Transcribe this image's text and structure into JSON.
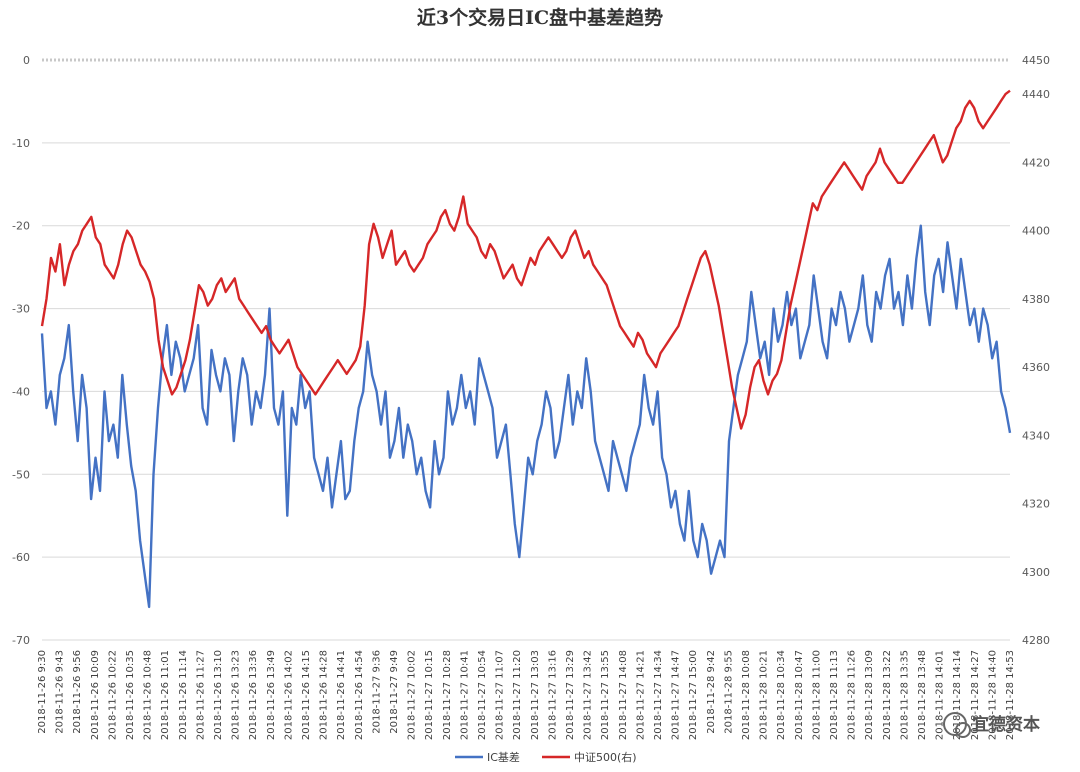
{
  "chart_data": {
    "type": "line",
    "title": "近3个交易日IC盘中基差趋势",
    "y_left": {
      "ylim": [
        -70,
        0
      ],
      "ticks": [
        0,
        -10,
        -20,
        -30,
        -40,
        -50,
        -60,
        -70
      ]
    },
    "y_right": {
      "ylim": [
        4280,
        4450
      ],
      "ticks": [
        4450,
        4440,
        4420,
        4400,
        4380,
        4360,
        4340,
        4320,
        4300,
        4280
      ]
    },
    "x_tick_labels": [
      "2018-11-26 9:30",
      "2018-11-26 9:43",
      "2018-11-26 9:56",
      "2018-11-26 10:09",
      "2018-11-26 10:22",
      "2018-11-26 10:35",
      "2018-11-26 10:48",
      "2018-11-26 11:01",
      "2018-11-26 11:14",
      "2018-11-26 11:27",
      "2018-11-26 13:10",
      "2018-11-26 13:23",
      "2018-11-26 13:36",
      "2018-11-26 13:49",
      "2018-11-26 14:02",
      "2018-11-26 14:15",
      "2018-11-26 14:28",
      "2018-11-26 14:41",
      "2018-11-26 14:54",
      "2018-11-27 9:36",
      "2018-11-27 9:49",
      "2018-11-27 10:02",
      "2018-11-27 10:15",
      "2018-11-27 10:28",
      "2018-11-27 10:41",
      "2018-11-27 10:54",
      "2018-11-27 11:07",
      "2018-11-27 11:20",
      "2018-11-27 13:03",
      "2018-11-27 13:16",
      "2018-11-27 13:29",
      "2018-11-27 13:42",
      "2018-11-27 13:55",
      "2018-11-27 14:08",
      "2018-11-27 14:21",
      "2018-11-27 14:34",
      "2018-11-27 14:47",
      "2018-11-27 15:00",
      "2018-11-28 9:42",
      "2018-11-28 9:55",
      "2018-11-28 10:08",
      "2018-11-28 10:21",
      "2018-11-28 10:34",
      "2018-11-28 10:47",
      "2018-11-28 11:00",
      "2018-11-28 11:13",
      "2018-11-28 11:26",
      "2018-11-28 13:09",
      "2018-11-28 13:22",
      "2018-11-28 13:35",
      "2018-11-28 13:48",
      "2018-11-28 14:01",
      "2018-11-28 14:14",
      "2018-11-28 14:27",
      "2018-11-28 14:40",
      "2018-11-28 14:53"
    ],
    "series": [
      {
        "name": "IC基差",
        "axis": "left",
        "color": "#4472C4",
        "values": [
          -33,
          -42,
          -40,
          -44,
          -38,
          -36,
          -32,
          -40,
          -46,
          -38,
          -42,
          -53,
          -48,
          -52,
          -40,
          -46,
          -44,
          -48,
          -38,
          -44,
          -49,
          -52,
          -58,
          -62,
          -66,
          -50,
          -42,
          -36,
          -32,
          -38,
          -34,
          -36,
          -40,
          -38,
          -36,
          -32,
          -42,
          -44,
          -35,
          -38,
          -40,
          -36,
          -38,
          -46,
          -40,
          -36,
          -38,
          -44,
          -40,
          -42,
          -38,
          -30,
          -42,
          -44,
          -40,
          -55,
          -42,
          -44,
          -38,
          -42,
          -40,
          -48,
          -50,
          -52,
          -48,
          -54,
          -50,
          -46,
          -53,
          -52,
          -46,
          -42,
          -40,
          -34,
          -38,
          -40,
          -44,
          -40,
          -48,
          -46,
          -42,
          -48,
          -44,
          -46,
          -50,
          -48,
          -52,
          -54,
          -46,
          -50,
          -48,
          -40,
          -44,
          -42,
          -38,
          -42,
          -40,
          -44,
          -36,
          -38,
          -40,
          -42,
          -48,
          -46,
          -44,
          -50,
          -56,
          -60,
          -54,
          -48,
          -50,
          -46,
          -44,
          -40,
          -42,
          -48,
          -46,
          -42,
          -38,
          -44,
          -40,
          -42,
          -36,
          -40,
          -46,
          -48,
          -50,
          -52,
          -46,
          -48,
          -50,
          -52,
          -48,
          -46,
          -44,
          -38,
          -42,
          -44,
          -40,
          -48,
          -50,
          -54,
          -52,
          -56,
          -58,
          -52,
          -58,
          -60,
          -56,
          -58,
          -62,
          -60,
          -58,
          -60,
          -46,
          -42,
          -38,
          -36,
          -34,
          -28,
          -32,
          -36,
          -34,
          -38,
          -30,
          -34,
          -32,
          -28,
          -32,
          -30,
          -36,
          -34,
          -32,
          -26,
          -30,
          -34,
          -36,
          -30,
          -32,
          -28,
          -30,
          -34,
          -32,
          -30,
          -26,
          -32,
          -34,
          -28,
          -30,
          -26,
          -24,
          -30,
          -28,
          -32,
          -26,
          -30,
          -24,
          -20,
          -28,
          -32,
          -26,
          -24,
          -28,
          -22,
          -26,
          -30,
          -24,
          -28,
          -32,
          -30,
          -34,
          -30,
          -32,
          -36,
          -34,
          -40,
          -42,
          -45
        ]
      },
      {
        "name": "中证500(右)",
        "axis": "right",
        "color": "#D62728",
        "values": [
          4372,
          4380,
          4392,
          4388,
          4396,
          4384,
          4390,
          4394,
          4396,
          4400,
          4402,
          4404,
          4398,
          4396,
          4390,
          4388,
          4386,
          4390,
          4396,
          4400,
          4398,
          4394,
          4390,
          4388,
          4385,
          4380,
          4368,
          4360,
          4356,
          4352,
          4354,
          4358,
          4362,
          4368,
          4376,
          4384,
          4382,
          4378,
          4380,
          4384,
          4386,
          4382,
          4384,
          4386,
          4380,
          4378,
          4376,
          4374,
          4372,
          4370,
          4372,
          4368,
          4366,
          4364,
          4366,
          4368,
          4364,
          4360,
          4358,
          4356,
          4354,
          4352,
          4354,
          4356,
          4358,
          4360,
          4362,
          4360,
          4358,
          4360,
          4362,
          4366,
          4378,
          4396,
          4402,
          4398,
          4392,
          4396,
          4400,
          4390,
          4392,
          4394,
          4390,
          4388,
          4390,
          4392,
          4396,
          4398,
          4400,
          4404,
          4406,
          4402,
          4400,
          4404,
          4410,
          4402,
          4400,
          4398,
          4394,
          4392,
          4396,
          4394,
          4390,
          4386,
          4388,
          4390,
          4386,
          4384,
          4388,
          4392,
          4390,
          4394,
          4396,
          4398,
          4396,
          4394,
          4392,
          4394,
          4398,
          4400,
          4396,
          4392,
          4394,
          4390,
          4388,
          4386,
          4384,
          4380,
          4376,
          4372,
          4370,
          4368,
          4366,
          4370,
          4368,
          4364,
          4362,
          4360,
          4364,
          4366,
          4368,
          4370,
          4372,
          4376,
          4380,
          4384,
          4388,
          4392,
          4394,
          4390,
          4384,
          4378,
          4370,
          4362,
          4354,
          4348,
          4342,
          4346,
          4354,
          4360,
          4362,
          4356,
          4352,
          4356,
          4358,
          4362,
          4370,
          4378,
          4384,
          4390,
          4396,
          4402,
          4408,
          4406,
          4410,
          4412,
          4414,
          4416,
          4418,
          4420,
          4418,
          4416,
          4414,
          4412,
          4416,
          4418,
          4420,
          4424,
          4420,
          4418,
          4416,
          4414,
          4414,
          4416,
          4418,
          4420,
          4422,
          4424,
          4426,
          4428,
          4424,
          4420,
          4422,
          4426,
          4430,
          4432,
          4436,
          4438,
          4436,
          4432,
          4430,
          4432,
          4434,
          4436,
          4438,
          4440,
          4441
        ]
      }
    ],
    "legend": {
      "placement": "bottom"
    },
    "grid": true,
    "watermark": "宜德资本"
  }
}
